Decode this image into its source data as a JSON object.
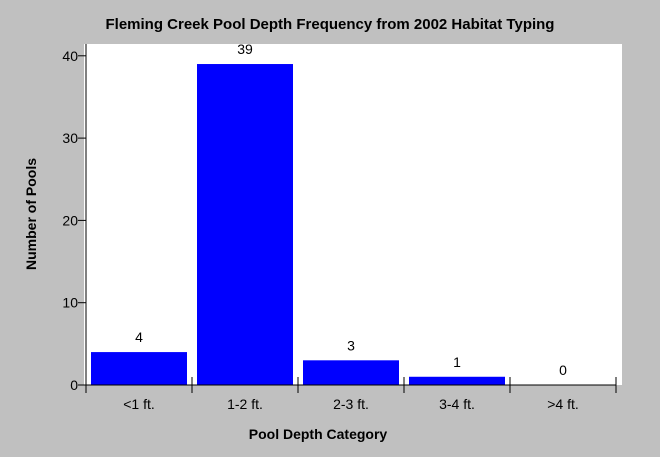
{
  "chart_data": {
    "type": "bar",
    "title": "Fleming Creek Pool Depth Frequency from 2002 Habitat Typing",
    "xlabel": "Pool Depth Category",
    "ylabel": "Number of Pools",
    "categories": [
      "<1 ft.",
      "1-2 ft.",
      "2-3 ft.",
      "3-4 ft.",
      ">4 ft."
    ],
    "values": [
      4,
      39,
      3,
      1,
      0
    ],
    "data_labels": [
      "4",
      "39",
      "3",
      "1",
      "0"
    ],
    "ylim": [
      0,
      41
    ],
    "yticks": [
      0,
      10,
      20,
      30,
      40
    ],
    "grid": false,
    "legend": "none",
    "colors": {
      "bar": "#0000ff",
      "plot_background": "#ffffff",
      "figure_background": "#c0c0c0",
      "axis": "#000000"
    }
  }
}
